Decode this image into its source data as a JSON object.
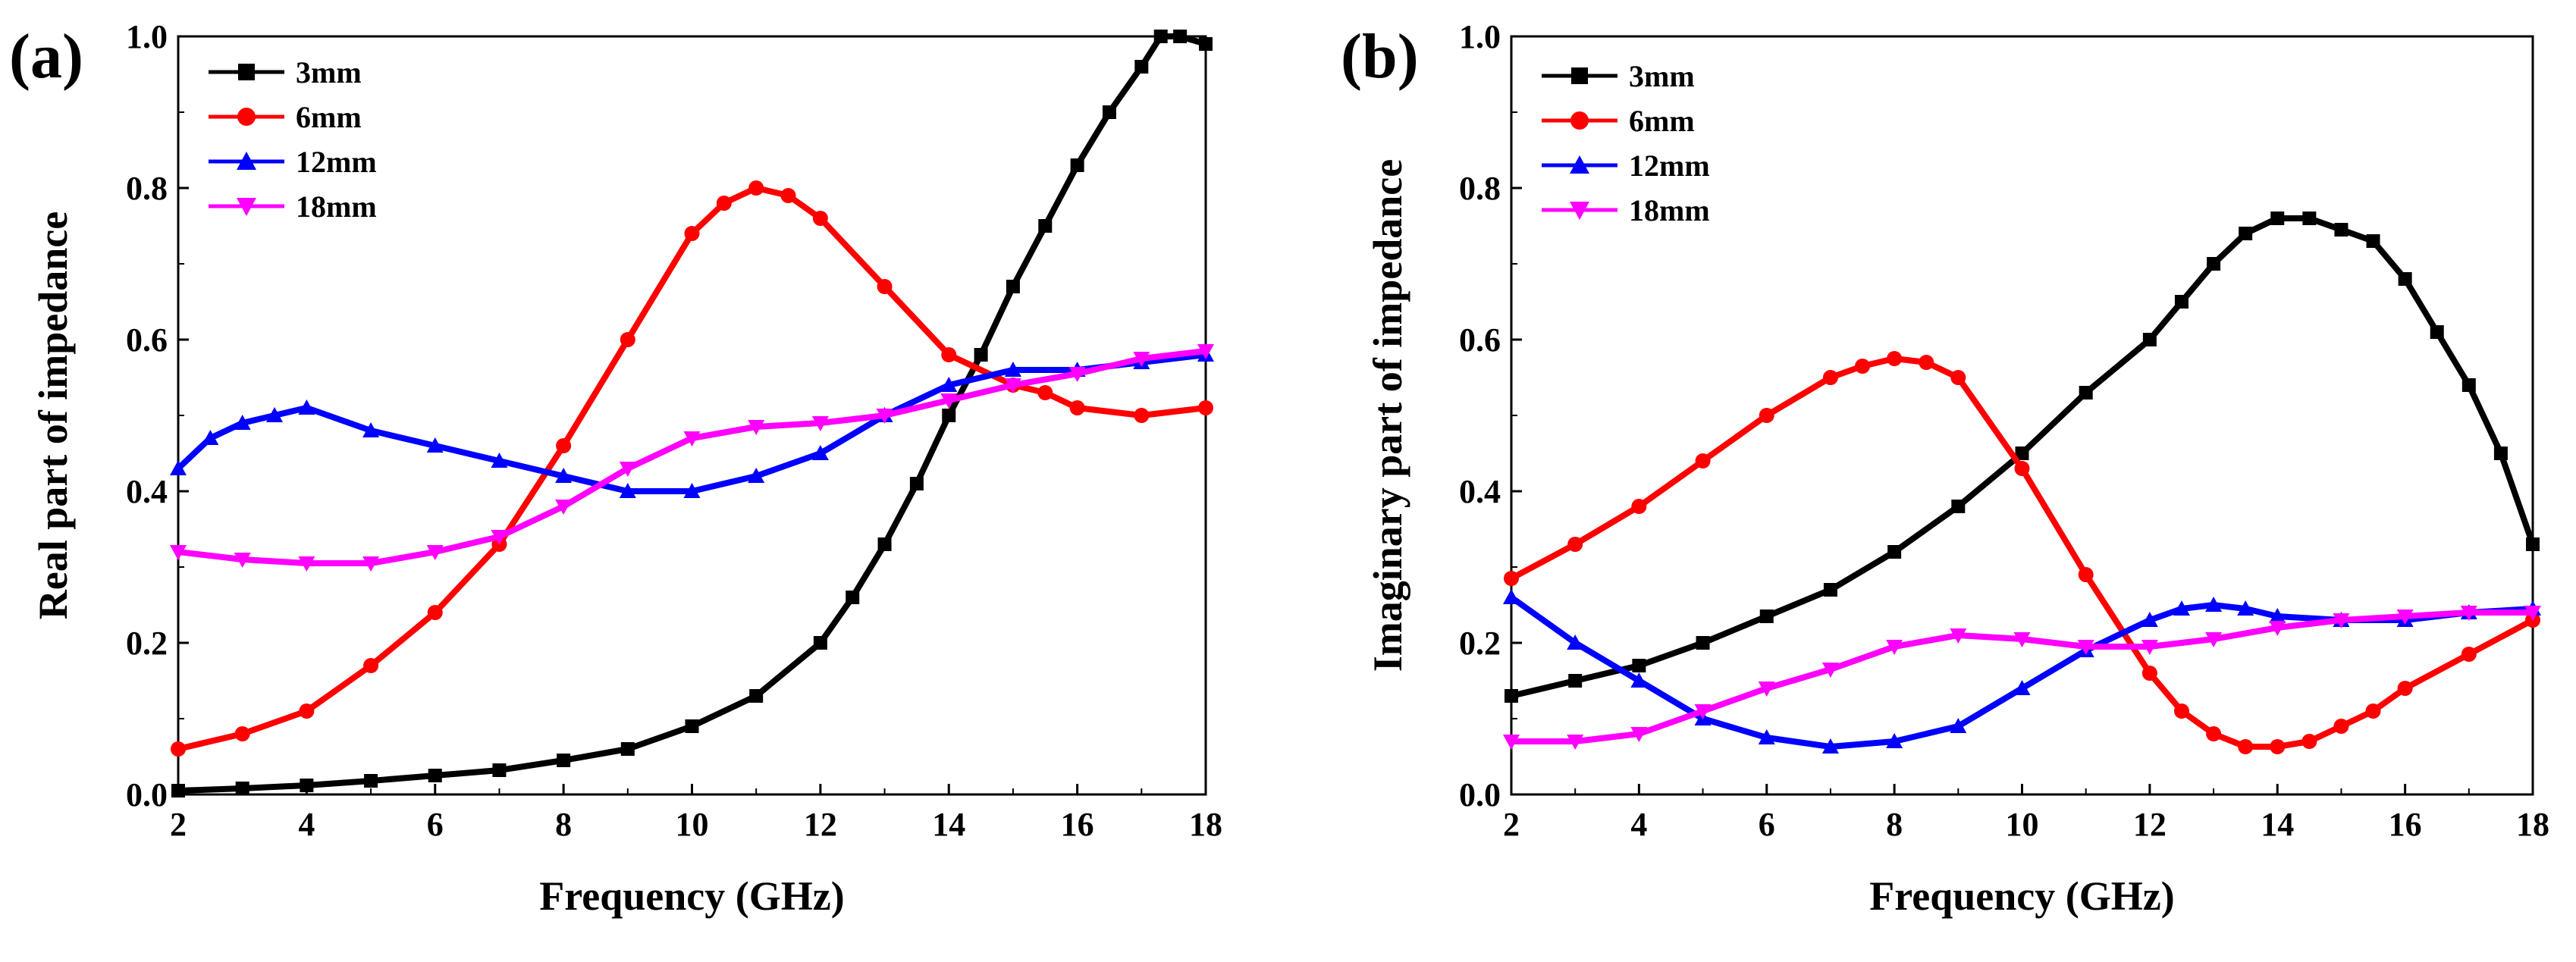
{
  "figure": {
    "colors": {
      "3mm": "#000000",
      "6mm": "#ff0000",
      "12mm": "#0000ff",
      "18mm": "#ff00ff"
    }
  },
  "chart_data": [
    {
      "panel_label": "(a)",
      "type": "line",
      "title": "",
      "xlabel": "Frequency (GHz)",
      "ylabel": "Real part of impedance",
      "xlim": [
        2,
        18
      ],
      "ylim": [
        0.0,
        1.0
      ],
      "xticks": [
        "2",
        "4",
        "6",
        "8",
        "10",
        "12",
        "14",
        "16",
        "18"
      ],
      "yticks": [
        "0.0",
        "0.2",
        "0.4",
        "0.6",
        "0.8",
        "1.0"
      ],
      "legend_position": "top-left",
      "series": [
        {
          "name": "3mm",
          "marker": "square",
          "x": [
            2,
            3,
            4,
            5,
            6,
            7,
            8,
            9,
            10,
            11,
            12,
            12.5,
            13,
            13.5,
            14,
            14.5,
            15,
            15.5,
            16,
            16.5,
            17,
            17.3,
            17.6,
            18
          ],
          "y": [
            0.005,
            0.008,
            0.012,
            0.018,
            0.025,
            0.032,
            0.045,
            0.06,
            0.09,
            0.13,
            0.2,
            0.26,
            0.33,
            0.41,
            0.5,
            0.58,
            0.67,
            0.75,
            0.83,
            0.9,
            0.96,
            1.0,
            1.0,
            0.99
          ]
        },
        {
          "name": "6mm",
          "marker": "circle",
          "x": [
            2,
            3,
            4,
            5,
            6,
            7,
            8,
            9,
            10,
            10.5,
            11,
            11.5,
            12,
            13,
            14,
            15,
            15.5,
            16,
            17,
            18
          ],
          "y": [
            0.06,
            0.08,
            0.11,
            0.17,
            0.24,
            0.33,
            0.46,
            0.6,
            0.74,
            0.78,
            0.8,
            0.79,
            0.76,
            0.67,
            0.58,
            0.54,
            0.53,
            0.51,
            0.5,
            0.51
          ]
        },
        {
          "name": "12mm",
          "marker": "triangle-up",
          "x": [
            2,
            2.5,
            3,
            3.5,
            4,
            5,
            6,
            7,
            8,
            9,
            10,
            11,
            12,
            13,
            14,
            15,
            16,
            17,
            18
          ],
          "y": [
            0.43,
            0.47,
            0.49,
            0.5,
            0.51,
            0.48,
            0.46,
            0.44,
            0.42,
            0.4,
            0.4,
            0.42,
            0.45,
            0.5,
            0.54,
            0.56,
            0.56,
            0.57,
            0.58
          ]
        },
        {
          "name": "18mm",
          "marker": "triangle-down",
          "x": [
            2,
            3,
            4,
            5,
            6,
            7,
            8,
            9,
            10,
            11,
            12,
            13,
            14,
            15,
            16,
            17,
            18
          ],
          "y": [
            0.32,
            0.31,
            0.305,
            0.305,
            0.32,
            0.34,
            0.38,
            0.43,
            0.47,
            0.485,
            0.49,
            0.5,
            0.52,
            0.54,
            0.555,
            0.575,
            0.585
          ]
        }
      ]
    },
    {
      "panel_label": "(b)",
      "type": "line",
      "title": "",
      "xlabel": "Frequency (GHz)",
      "ylabel": "Imaginary part of impedance",
      "xlim": [
        2,
        18
      ],
      "ylim": [
        0.0,
        1.0
      ],
      "xticks": [
        "2",
        "4",
        "6",
        "8",
        "10",
        "12",
        "14",
        "16",
        "18"
      ],
      "yticks": [
        "0.0",
        "0.2",
        "0.4",
        "0.6",
        "0.8",
        "1.0"
      ],
      "legend_position": "top-left",
      "series": [
        {
          "name": "3mm",
          "marker": "square",
          "x": [
            2,
            3,
            4,
            5,
            6,
            7,
            8,
            9,
            10,
            11,
            12,
            12.5,
            13,
            13.5,
            14,
            14.5,
            15,
            15.5,
            16,
            16.5,
            17,
            17.5,
            18
          ],
          "y": [
            0.13,
            0.15,
            0.17,
            0.2,
            0.235,
            0.27,
            0.32,
            0.38,
            0.45,
            0.53,
            0.6,
            0.65,
            0.7,
            0.74,
            0.76,
            0.76,
            0.745,
            0.73,
            0.68,
            0.61,
            0.54,
            0.45,
            0.33
          ]
        },
        {
          "name": "6mm",
          "marker": "circle",
          "x": [
            2,
            3,
            4,
            5,
            6,
            7,
            7.5,
            8,
            8.5,
            9,
            10,
            11,
            12,
            12.5,
            13,
            13.5,
            14,
            14.5,
            15,
            15.5,
            16,
            17,
            18
          ],
          "y": [
            0.285,
            0.33,
            0.38,
            0.44,
            0.5,
            0.55,
            0.565,
            0.575,
            0.57,
            0.55,
            0.43,
            0.29,
            0.16,
            0.11,
            0.08,
            0.063,
            0.063,
            0.07,
            0.09,
            0.11,
            0.14,
            0.185,
            0.23
          ]
        },
        {
          "name": "12mm",
          "marker": "triangle-up",
          "x": [
            2,
            3,
            4,
            5,
            6,
            7,
            8,
            9,
            10,
            11,
            12,
            12.5,
            13,
            13.5,
            14,
            15,
            16,
            17,
            18
          ],
          "y": [
            0.26,
            0.2,
            0.15,
            0.1,
            0.075,
            0.063,
            0.07,
            0.09,
            0.14,
            0.19,
            0.23,
            0.245,
            0.25,
            0.245,
            0.235,
            0.23,
            0.23,
            0.24,
            0.245
          ]
        },
        {
          "name": "18mm",
          "marker": "triangle-down",
          "x": [
            2,
            3,
            4,
            5,
            6,
            7,
            8,
            9,
            10,
            11,
            12,
            13,
            14,
            15,
            16,
            17,
            18
          ],
          "y": [
            0.07,
            0.07,
            0.08,
            0.11,
            0.14,
            0.165,
            0.195,
            0.21,
            0.205,
            0.195,
            0.195,
            0.205,
            0.22,
            0.23,
            0.235,
            0.24,
            0.24
          ]
        }
      ]
    }
  ]
}
